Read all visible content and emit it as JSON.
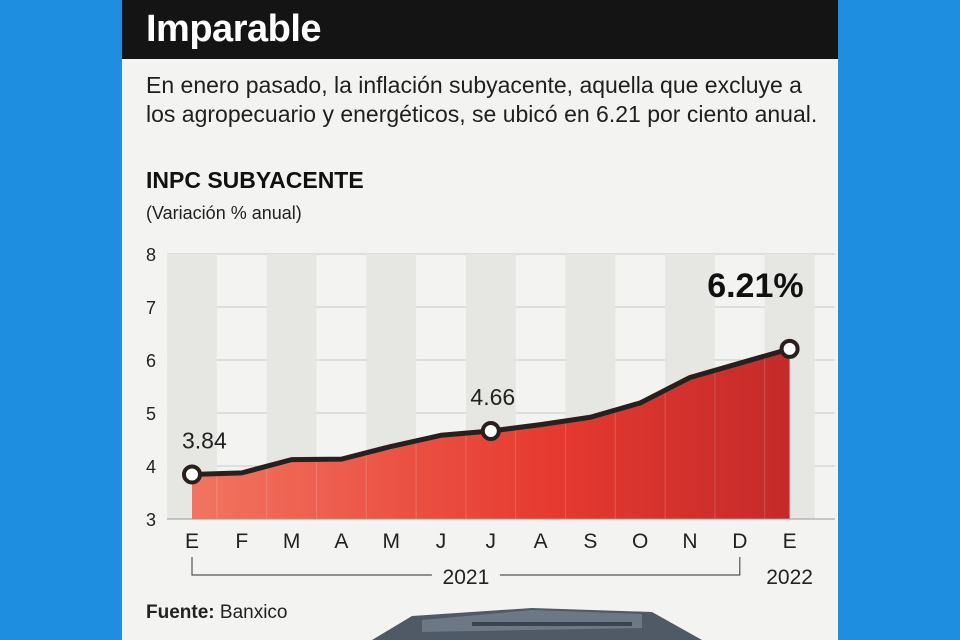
{
  "header": {
    "title": "Imparable"
  },
  "intro_text": "En enero pasado, la inflación subyacente, aquella que excluye a los agropecuario y energéticos, se ubicó en 6.21 por ciento anual.",
  "chart_data": {
    "type": "area",
    "title": "INPC SUBYACENTE",
    "subtitle": "(Variación % anual)",
    "categories": [
      "E",
      "F",
      "M",
      "A",
      "M",
      "J",
      "J",
      "A",
      "S",
      "O",
      "N",
      "D",
      "E"
    ],
    "values": [
      3.84,
      3.87,
      4.12,
      4.13,
      4.37,
      4.58,
      4.66,
      4.78,
      4.92,
      5.19,
      5.67,
      5.94,
      6.21
    ],
    "ylim": [
      3,
      8
    ],
    "yticks": [
      3,
      4,
      5,
      6,
      7,
      8
    ],
    "grid": true,
    "labeled_points": [
      {
        "index": 0,
        "label": "3.84"
      },
      {
        "index": 6,
        "label": "4.66"
      },
      {
        "index": 12,
        "label": "6.21%"
      }
    ],
    "year_groups": [
      {
        "label": "2021",
        "from": 0,
        "to": 11
      },
      {
        "label": "2022",
        "from": 12,
        "to": 12
      }
    ],
    "colors": {
      "fill_light": "#f27460",
      "fill_dark": "#c42a2a",
      "line": "#2a1f1c",
      "marker_fill": "#ffffff"
    }
  },
  "source": {
    "label": "Fuente:",
    "value": "Banxico"
  }
}
